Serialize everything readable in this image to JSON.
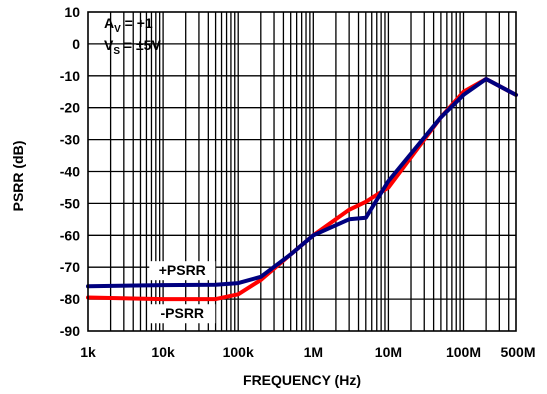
{
  "chart_data": {
    "type": "line",
    "title": "",
    "xlabel": "FREQUENCY (Hz)",
    "ylabel": "PSRR (dB)",
    "xscale": "log",
    "xlim": [
      1000,
      500000000
    ],
    "ylim": [
      -90,
      10
    ],
    "grid": true,
    "x_ticks": [
      {
        "value": 1000,
        "label": "1k"
      },
      {
        "value": 10000,
        "label": "10k"
      },
      {
        "value": 100000,
        "label": "100k"
      },
      {
        "value": 1000000,
        "label": "1M"
      },
      {
        "value": 10000000,
        "label": "10M"
      },
      {
        "value": 100000000,
        "label": "100M"
      },
      {
        "value": 500000000,
        "label": "500M"
      }
    ],
    "y_ticks": [
      10,
      0,
      -10,
      -20,
      -30,
      -40,
      -50,
      -60,
      -70,
      -80,
      -90
    ],
    "conditions": {
      "line1_main": "A",
      "line1_sub": "V",
      "line1_rest": " = +1",
      "line2_main": "V",
      "line2_sub": "S",
      "line2_rest": " = ±5V"
    },
    "series": [
      {
        "name": "+PSRR",
        "color": "#00007f",
        "x": [
          1000,
          10000,
          50000,
          100000,
          200000,
          500000,
          1000000,
          3000000,
          5000000,
          10000000,
          50000000,
          100000000,
          200000000,
          500000000
        ],
        "y": [
          -76,
          -75.6,
          -75.5,
          -75,
          -73,
          -66,
          -60,
          -55,
          -54.5,
          -43,
          -23,
          -16,
          -11,
          -16
        ]
      },
      {
        "name": "-PSRR",
        "color": "#ff0000",
        "x": [
          1000,
          10000,
          50000,
          100000,
          200000,
          500000,
          1000000,
          3000000,
          5000000,
          10000000,
          50000000,
          100000000,
          200000000,
          500000000
        ],
        "y": [
          -79.5,
          -80,
          -80,
          -78.5,
          -74,
          -66,
          -60,
          -52,
          -49.5,
          -45,
          -23,
          -15,
          -11,
          -16
        ]
      }
    ],
    "series_labels": [
      {
        "series": "+PSRR",
        "text": "+PSRR",
        "x": 18000,
        "y": -72.5
      },
      {
        "series": "-PSRR",
        "text": "-PSRR",
        "x": 18000,
        "y": -86
      }
    ]
  }
}
